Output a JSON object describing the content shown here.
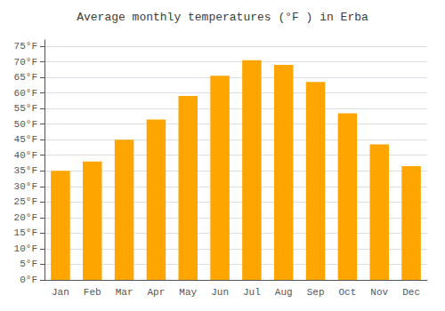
{
  "chart_data": {
    "type": "bar",
    "title": "Average monthly temperatures (°F ) in Erba",
    "categories": [
      "Jan",
      "Feb",
      "Mar",
      "Apr",
      "May",
      "Jun",
      "Jul",
      "Aug",
      "Sep",
      "Oct",
      "Nov",
      "Dec"
    ],
    "values": [
      35,
      38,
      45,
      51.5,
      59,
      65.5,
      70.5,
      69,
      63.5,
      53.5,
      43.5,
      36.5
    ],
    "color": "#FFA500",
    "ylim": [
      0,
      77
    ],
    "yticks": [
      {
        "value": 0,
        "label": "0°F"
      },
      {
        "value": 5,
        "label": "5°F"
      },
      {
        "value": 10,
        "label": "10°F"
      },
      {
        "value": 15,
        "label": "15°F"
      },
      {
        "value": 20,
        "label": "20°F"
      },
      {
        "value": 25,
        "label": "25°F"
      },
      {
        "value": 30,
        "label": "30°F"
      },
      {
        "value": 35,
        "label": "35°F"
      },
      {
        "value": 40,
        "label": "40°F"
      },
      {
        "value": 45,
        "label": "45°F"
      },
      {
        "value": 50,
        "label": "50°F"
      },
      {
        "value": 55,
        "label": "55°F"
      },
      {
        "value": 60,
        "label": "60°F"
      },
      {
        "value": 65,
        "label": "65°F"
      },
      {
        "value": 70,
        "label": "70°F"
      },
      {
        "value": 75,
        "label": "75°F"
      }
    ],
    "grid": true
  }
}
